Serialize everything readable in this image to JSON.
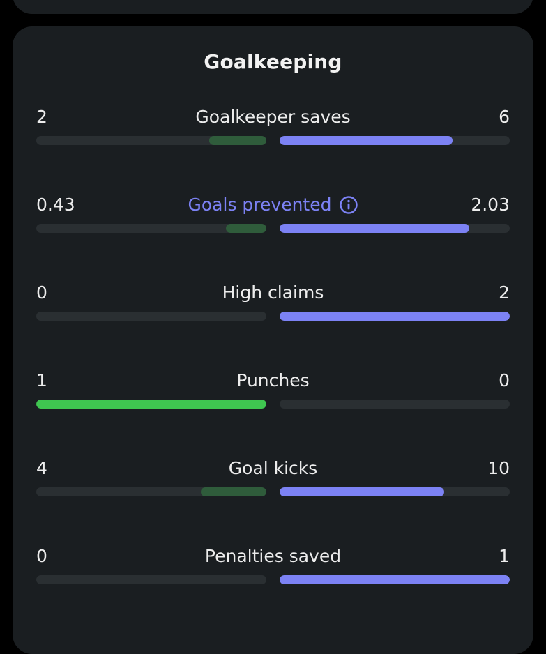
{
  "section": {
    "title": "Goalkeeping"
  },
  "colors": {
    "card_bg": "#1a1e21",
    "track": "#2a2f32",
    "home_winner": "#3fc650",
    "home_loser": "#2f5c3b",
    "away_winner": "#7c82f4",
    "label_accent": "#7c82f4"
  },
  "stats": [
    {
      "label": "Goalkeeper saves",
      "home": "2",
      "away": "6",
      "home_fraction": 0.25,
      "away_fraction": 0.75,
      "home_leads": false,
      "accent": false,
      "info": false
    },
    {
      "label": "Goals prevented",
      "home": "0.43",
      "away": "2.03",
      "home_fraction": 0.175,
      "away_fraction": 0.825,
      "home_leads": false,
      "accent": true,
      "info": true
    },
    {
      "label": "High claims",
      "home": "0",
      "away": "2",
      "home_fraction": 0.0,
      "away_fraction": 1.0,
      "home_leads": false,
      "accent": false,
      "info": false
    },
    {
      "label": "Punches",
      "home": "1",
      "away": "0",
      "home_fraction": 1.0,
      "away_fraction": 0.0,
      "home_leads": true,
      "accent": false,
      "info": false
    },
    {
      "label": "Goal kicks",
      "home": "4",
      "away": "10",
      "home_fraction": 0.286,
      "away_fraction": 0.714,
      "home_leads": false,
      "accent": false,
      "info": false
    },
    {
      "label": "Penalties saved",
      "home": "0",
      "away": "1",
      "home_fraction": 0.0,
      "away_fraction": 1.0,
      "home_leads": false,
      "accent": false,
      "info": false
    }
  ]
}
